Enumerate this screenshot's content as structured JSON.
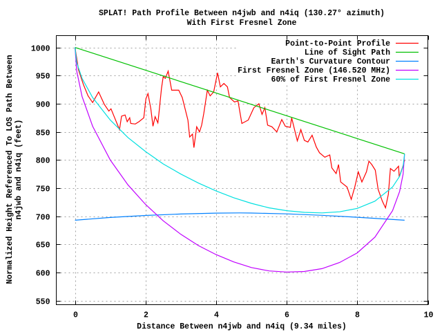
{
  "chart_data": {
    "type": "line",
    "title": "SPLAT! Path Profile Between n4jwb and n4iq (130.27° azimuth)",
    "subtitle": "With First Fresnel Zone",
    "xlabel": "Distance Between n4jwb and n4iq (9.34 miles)",
    "ylabel": [
      "Normalized Height Referenced To LOS Path Between",
      "n4jwb and n4iq (feet)"
    ],
    "xlim": [
      -0.53,
      10
    ],
    "ylim": [
      543,
      1021
    ],
    "xticks": [
      0,
      2,
      4,
      6,
      8,
      10
    ],
    "yticks": [
      550,
      600,
      650,
      700,
      750,
      800,
      850,
      900,
      950,
      1000
    ],
    "grid": true,
    "legend_position": "top-right",
    "series": [
      {
        "name": "Point-to-Point Profile",
        "color": "#ff0000",
        "x": [
          0,
          0.1,
          0.24,
          0.37,
          0.5,
          0.67,
          0.83,
          0.96,
          1.02,
          1.26,
          1.32,
          1.42,
          1.48,
          1.55,
          1.58,
          1.71,
          1.81,
          1.95,
          2.01,
          2.07,
          2.15,
          2.21,
          2.27,
          2.35,
          2.37,
          2.45,
          2.5,
          2.56,
          2.64,
          2.74,
          2.94,
          3.04,
          3.2,
          3.25,
          3.33,
          3.37,
          3.45,
          3.53,
          3.59,
          3.65,
          3.75,
          3.83,
          3.93,
          4.04,
          4.12,
          4.22,
          4.32,
          4.38,
          4.52,
          4.62,
          4.73,
          4.91,
          5.07,
          5.21,
          5.3,
          5.38,
          5.46,
          5.58,
          5.72,
          5.86,
          5.96,
          6.1,
          6.14,
          6.3,
          6.4,
          6.5,
          6.6,
          6.72,
          6.84,
          6.93,
          7.08,
          7.22,
          7.28,
          7.4,
          7.47,
          7.53,
          7.71,
          7.83,
          7.93,
          8.03,
          8.13,
          8.26,
          8.33,
          8.41,
          8.51,
          8.59,
          8.71,
          8.8,
          8.88,
          8.94,
          9.04,
          9.17,
          9.19,
          9.3,
          9.34
        ],
        "y": [
          1000,
          960,
          934,
          914,
          902,
          921,
          899,
          887,
          891,
          854,
          878,
          880,
          868,
          875,
          865,
          864,
          868,
          875,
          909,
          918,
          891,
          860,
          877,
          866,
          878,
          927,
          948,
          945,
          958,
          924,
          924,
          911,
          871,
          841,
          846,
          822,
          859,
          850,
          862,
          883,
          924,
          914,
          921,
          955,
          930,
          936,
          930,
          911,
          903,
          905,
          865,
          871,
          893,
          900,
          881,
          893,
          862,
          859,
          850,
          872,
          860,
          858,
          875,
          834,
          854,
          835,
          832,
          844,
          823,
          813,
          805,
          809,
          786,
          776,
          792,
          761,
          752,
          730,
          752,
          779,
          761,
          779,
          798,
          792,
          782,
          748,
          727,
          715,
          739,
          785,
          780,
          789,
          770,
          790,
          800
        ]
      },
      {
        "name": "Line of Sight Path",
        "color": "#00c000",
        "x": [
          0,
          9.34
        ],
        "y": [
          1000,
          811
        ]
      },
      {
        "name": "Earth's Curvature Contour",
        "color": "#0080ff",
        "x": [
          0,
          1,
          2,
          3,
          4,
          4.67,
          5,
          6,
          7,
          8,
          9.34
        ],
        "y": [
          693,
          698,
          701.5,
          704.1,
          705.7,
          706,
          705.8,
          704.3,
          701.8,
          698.3,
          693
        ]
      },
      {
        "name": "First Fresnel Zone (146.520 MHz)",
        "color": "#c000ff",
        "x": [
          0,
          0.05,
          0.2,
          0.5,
          1,
          1.5,
          2,
          2.5,
          3,
          3.5,
          4,
          4.5,
          5,
          5.5,
          6,
          6.5,
          7,
          7.5,
          8,
          8.5,
          9,
          9.2,
          9.3,
          9.34
        ],
        "y": [
          1000,
          958,
          913,
          860,
          800,
          756,
          721,
          692,
          668,
          648,
          632,
          619,
          609,
          603,
          601,
          602,
          607,
          618,
          635,
          663,
          710,
          744,
          775,
          811
        ]
      },
      {
        "name": "60% of First Fresnel Zone",
        "color": "#00e0e0",
        "x": [
          0,
          0.05,
          0.2,
          0.5,
          1,
          1.5,
          2,
          2.5,
          3,
          3.5,
          4,
          4.5,
          5,
          5.5,
          6,
          6.5,
          7,
          7.5,
          8,
          8.5,
          9,
          9.2,
          9.3,
          9.34
        ],
        "y": [
          1000,
          973,
          945,
          911,
          871,
          840,
          815,
          793,
          775,
          759,
          745,
          733,
          723,
          715,
          710,
          707,
          706,
          708,
          714,
          727,
          752,
          771,
          789,
          811
        ]
      }
    ]
  }
}
